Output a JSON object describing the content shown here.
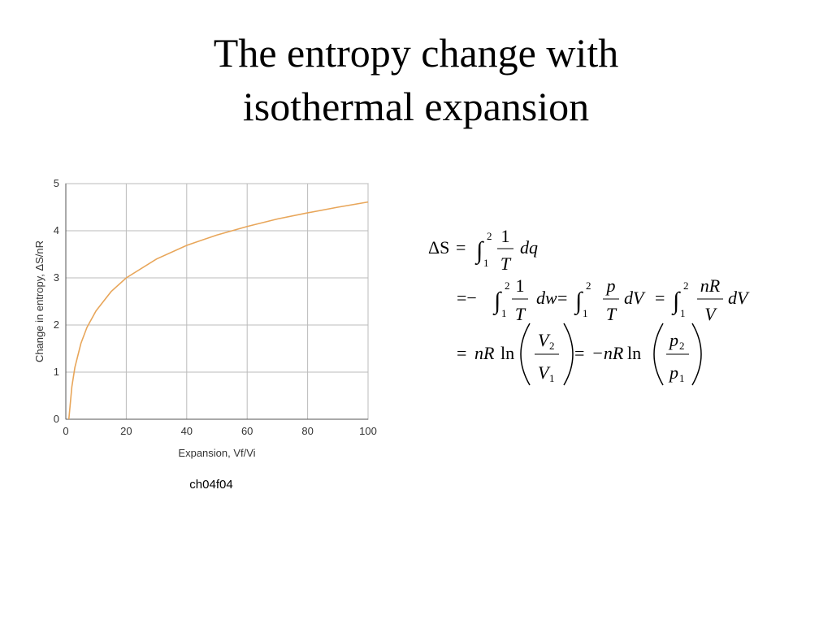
{
  "title": "The entropy change with isothermal expansion",
  "chart_data": {
    "type": "line",
    "x": [
      1,
      2,
      3,
      5,
      7,
      10,
      15,
      20,
      30,
      40,
      50,
      60,
      70,
      80,
      90,
      100
    ],
    "values": [
      0,
      0.69,
      1.1,
      1.61,
      1.95,
      2.3,
      2.71,
      3.0,
      3.4,
      3.69,
      3.91,
      4.09,
      4.25,
      4.38,
      4.5,
      4.61
    ],
    "color": "#e8a65a",
    "xlim": [
      0,
      100
    ],
    "xticks": [
      0,
      20,
      40,
      60,
      80,
      100
    ],
    "ylim": [
      0,
      5
    ],
    "yticks": [
      0,
      1,
      2,
      3,
      4,
      5
    ],
    "grid": true,
    "xlabel": "Expansion, Vf/Vi",
    "ylabel": "Change in entropy, ΔS/nR"
  },
  "caption": "ch04f04",
  "equation": [
    "ΔS",
    "=",
    "∫",
    "2",
    "1",
    "1",
    "T",
    "dq",
    "=−",
    "∫",
    "2",
    "1",
    "1",
    "T",
    "dw",
    "=",
    "∫",
    "2",
    "1",
    "p",
    "T",
    "dV",
    "=",
    "∫",
    "2",
    "1",
    "nR",
    "V",
    "dV",
    "=",
    "nR",
    "ln",
    "V",
    "2",
    "V",
    "1",
    "=",
    "−nR",
    "ln",
    "p",
    "2",
    "p",
    "1"
  ]
}
